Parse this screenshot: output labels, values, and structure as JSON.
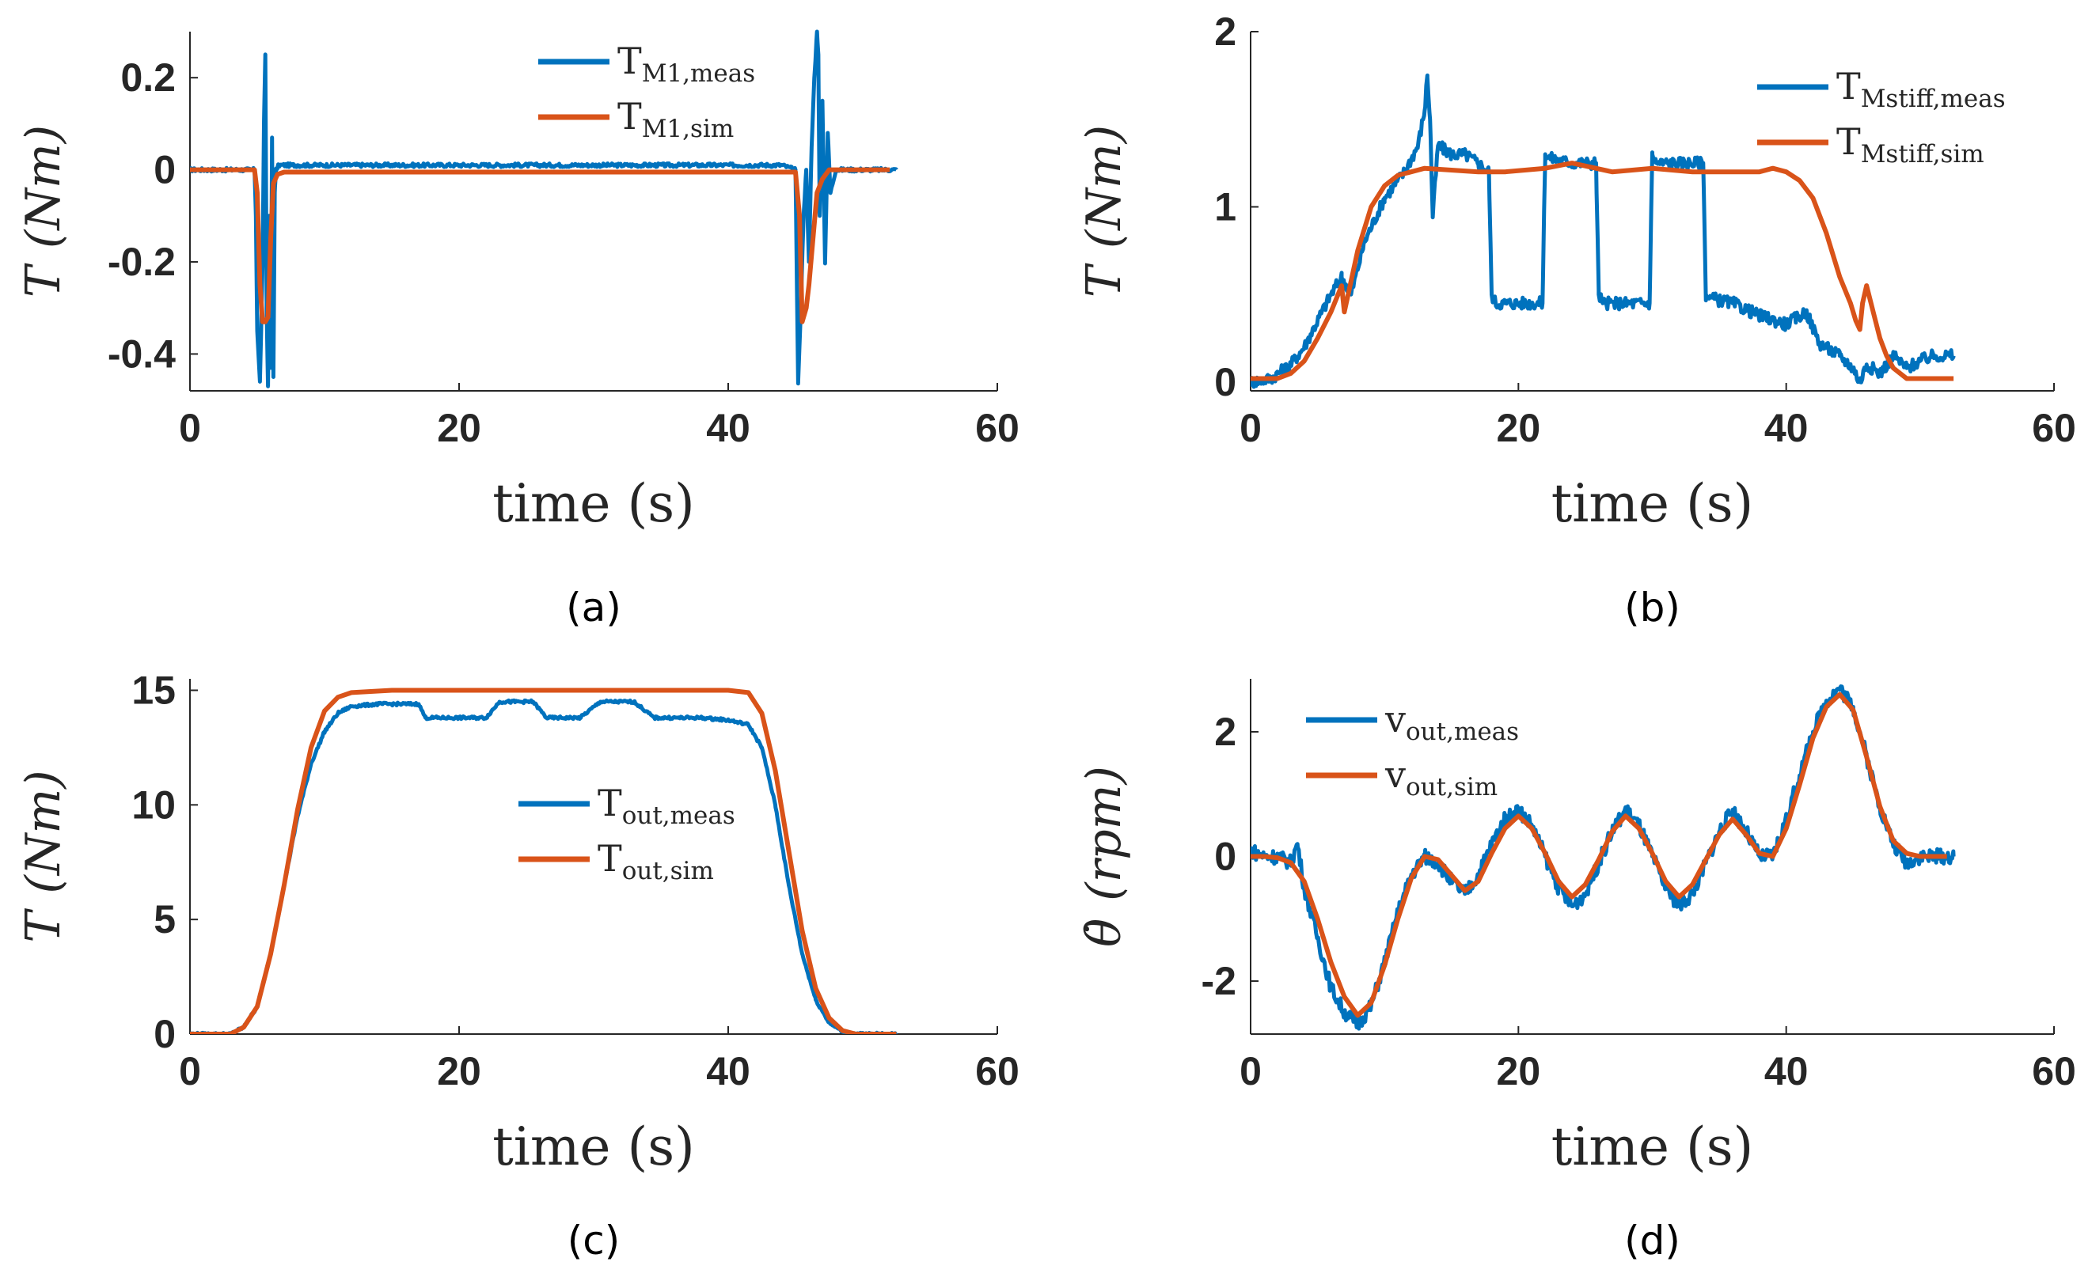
{
  "colors": {
    "meas": "#0072BD",
    "sim": "#D95319",
    "axis": "#262626"
  },
  "chart_data": [
    {
      "id": "a",
      "type": "line",
      "caption": "(a)",
      "xlabel": "time (s)",
      "ylabel_main": "T",
      "ylabel_unit": "(Nm)",
      "xlim": [
        0,
        60
      ],
      "ylim": [
        -0.48,
        0.3
      ],
      "xticks": [
        0,
        20,
        40,
        60
      ],
      "yticks": [
        0.2,
        0,
        -0.2,
        -0.4
      ],
      "ytick_labels": [
        "0.2",
        "0",
        "-0.2",
        "-0.4"
      ],
      "legend_position": "top-center",
      "series": [
        {
          "name": "T_M1,meas",
          "label_base": "T",
          "label_sub": "M1,meas",
          "color": "meas",
          "noise": 0.004,
          "x": [
            0,
            4.8,
            4.9,
            5.0,
            5.2,
            5.4,
            5.5,
            5.6,
            5.7,
            5.8,
            5.9,
            6.0,
            6.1,
            6.2,
            6.3,
            6.4,
            6.6,
            8,
            44,
            45.0,
            45.2,
            45.4,
            45.6,
            45.8,
            46.0,
            46.2,
            46.4,
            46.6,
            46.7,
            46.8,
            47.0,
            47.2,
            47.4,
            47.6,
            48,
            52.5
          ],
          "y": [
            0,
            0,
            -0.1,
            -0.35,
            -0.46,
            -0.2,
            0.1,
            0.25,
            -0.3,
            -0.47,
            -0.1,
            -0.43,
            0.07,
            -0.45,
            -0.05,
            0.0,
            0.01,
            0.01,
            0.01,
            0.0,
            -0.46,
            -0.3,
            -0.1,
            0.0,
            -0.2,
            0.05,
            0.2,
            0.3,
            0.25,
            -0.1,
            0.15,
            -0.2,
            0.08,
            -0.05,
            0.0,
            0.0
          ]
        },
        {
          "name": "T_M1,sim",
          "label_base": "T",
          "label_sub": "M1,sim",
          "color": "sim",
          "noise": 0,
          "x": [
            0,
            4.8,
            5.0,
            5.2,
            5.4,
            5.6,
            5.8,
            6.0,
            6.2,
            6.5,
            7.0,
            45.0,
            45.3,
            45.5,
            45.8,
            46.0,
            46.3,
            46.6,
            47.0,
            47.5,
            52
          ],
          "y": [
            0,
            0,
            -0.05,
            -0.25,
            -0.33,
            -0.33,
            -0.32,
            -0.15,
            -0.03,
            -0.01,
            -0.005,
            -0.005,
            -0.1,
            -0.33,
            -0.3,
            -0.25,
            -0.15,
            -0.05,
            -0.02,
            0.0,
            0.0
          ]
        }
      ]
    },
    {
      "id": "b",
      "type": "line",
      "caption": "(b)",
      "xlabel": "time (s)",
      "ylabel_main": "T",
      "ylabel_unit": "(Nm)",
      "xlim": [
        0,
        60
      ],
      "ylim": [
        -0.05,
        2.0
      ],
      "xticks": [
        0,
        20,
        40,
        60
      ],
      "yticks": [
        0,
        1,
        2
      ],
      "ytick_labels": [
        "0",
        "1",
        "2"
      ],
      "legend_position": "top-right",
      "series": [
        {
          "name": "T_Mstiff,meas",
          "label_base": "T",
          "label_sub": "Mstiff,meas",
          "color": "meas",
          "noise": 0.035,
          "x": [
            0,
            1.5,
            3,
            4,
            5,
            6,
            6.8,
            7.5,
            8.5,
            10,
            11.5,
            12.5,
            13.0,
            13.2,
            13.4,
            13.6,
            14,
            15,
            16,
            17,
            17.8,
            18.0,
            18.3,
            19,
            21,
            21.8,
            22.0,
            22.3,
            24,
            25.8,
            26.0,
            26.3,
            29.8,
            30.0,
            30.3,
            33.8,
            34.0,
            34.3,
            36,
            38,
            40,
            41.5,
            42.5,
            44,
            45,
            45.5,
            46,
            47,
            48,
            49,
            50,
            51,
            52.5
          ],
          "y": [
            0.0,
            0.02,
            0.1,
            0.2,
            0.35,
            0.5,
            0.6,
            0.5,
            0.8,
            1.05,
            1.2,
            1.35,
            1.55,
            1.75,
            1.5,
            0.95,
            1.35,
            1.3,
            1.3,
            1.25,
            1.2,
            0.5,
            0.45,
            0.45,
            0.45,
            0.45,
            1.3,
            1.28,
            1.25,
            1.25,
            0.5,
            0.45,
            0.45,
            1.3,
            1.25,
            1.25,
            0.5,
            0.48,
            0.45,
            0.38,
            0.33,
            0.4,
            0.22,
            0.15,
            0.08,
            0.0,
            0.1,
            0.05,
            0.15,
            0.08,
            0.12,
            0.15,
            0.15
          ]
        },
        {
          "name": "T_Mstiff,sim",
          "label_base": "T",
          "label_sub": "Mstiff,sim",
          "color": "sim",
          "noise": 0,
          "x": [
            0,
            2,
            3,
            4,
            5,
            6,
            6.8,
            7.0,
            8,
            9,
            10,
            11,
            13,
            17,
            19,
            22,
            24,
            27,
            30,
            33,
            36,
            38,
            39,
            40,
            41,
            42,
            43,
            44,
            44.8,
            45.2,
            45.5,
            45.7,
            46,
            46.5,
            47,
            47.5,
            48,
            48.5,
            49,
            50,
            52.5
          ],
          "y": [
            0.02,
            0.02,
            0.05,
            0.12,
            0.25,
            0.4,
            0.55,
            0.4,
            0.75,
            1.0,
            1.12,
            1.18,
            1.22,
            1.2,
            1.2,
            1.22,
            1.25,
            1.2,
            1.22,
            1.2,
            1.2,
            1.2,
            1.22,
            1.2,
            1.15,
            1.05,
            0.85,
            0.6,
            0.45,
            0.35,
            0.3,
            0.45,
            0.55,
            0.4,
            0.25,
            0.15,
            0.08,
            0.05,
            0.02,
            0.02,
            0.02
          ]
        }
      ]
    },
    {
      "id": "c",
      "type": "line",
      "caption": "(c)",
      "xlabel": "time (s)",
      "ylabel_main": "T",
      "ylabel_unit": "(Nm)",
      "xlim": [
        0,
        60
      ],
      "ylim": [
        0,
        15.5
      ],
      "xticks": [
        0,
        20,
        40,
        60
      ],
      "yticks": [
        0,
        5,
        10,
        15
      ],
      "ytick_labels": [
        "0",
        "5",
        "10",
        "15"
      ],
      "legend_position": "center-right",
      "series": [
        {
          "name": "T_out,meas",
          "label_base": "T",
          "label_sub": "out,meas",
          "color": "meas",
          "noise": 0.06,
          "x": [
            0,
            3,
            4,
            5,
            6,
            7,
            8,
            9,
            10,
            11,
            12,
            14,
            17,
            17.5,
            18.5,
            22,
            23,
            25.5,
            26.5,
            29,
            30.5,
            33,
            34.5,
            38,
            40,
            41.5,
            42.5,
            43.5,
            44.5,
            45.5,
            46.5,
            47.5,
            48.5,
            49.5,
            52.5
          ],
          "y": [
            0,
            0,
            0.3,
            1.2,
            3.5,
            6.5,
            9.5,
            11.8,
            13.2,
            14.0,
            14.3,
            14.4,
            14.4,
            13.8,
            13.8,
            13.8,
            14.5,
            14.5,
            13.8,
            13.8,
            14.5,
            14.5,
            13.8,
            13.8,
            13.7,
            13.5,
            12.5,
            10.0,
            6.5,
            3.5,
            1.5,
            0.5,
            0.1,
            0,
            0
          ]
        },
        {
          "name": "T_out,sim",
          "label_base": "T",
          "label_sub": "out,sim",
          "color": "sim",
          "noise": 0,
          "x": [
            0,
            3,
            4,
            5,
            6,
            7,
            8,
            9,
            10,
            11,
            12,
            15,
            20,
            30,
            40,
            41.5,
            42.5,
            43.5,
            44.5,
            45.5,
            46.5,
            47.5,
            48.5,
            49.5,
            52.5
          ],
          "y": [
            0,
            0,
            0.3,
            1.2,
            3.5,
            6.5,
            9.8,
            12.5,
            14.1,
            14.7,
            14.9,
            15.0,
            15.0,
            15.0,
            15.0,
            14.9,
            14.0,
            11.5,
            8.0,
            4.5,
            2.0,
            0.7,
            0.15,
            0,
            0
          ]
        }
      ]
    },
    {
      "id": "d",
      "type": "line",
      "caption": "(d)",
      "xlabel": "time (s)",
      "ylabel_main": "θ̇",
      "ylabel_unit": "(rpm)",
      "xlim": [
        0,
        60
      ],
      "ylim": [
        -2.85,
        2.85
      ],
      "xticks": [
        0,
        20,
        40,
        60
      ],
      "yticks": [
        2,
        0,
        -2
      ],
      "ytick_labels": [
        "2",
        "0",
        "-2"
      ],
      "legend_position": "top-left",
      "series": [
        {
          "name": "v_out,meas",
          "label_base": "v",
          "label_sub": "out,meas",
          "color": "meas",
          "noise": 0.12,
          "x": [
            0,
            1,
            2,
            3,
            3.5,
            4,
            5,
            6,
            7,
            8,
            9,
            10,
            11,
            12,
            13,
            14,
            15,
            16,
            17,
            18,
            19,
            20,
            21,
            22,
            23,
            24,
            25,
            26,
            27,
            28,
            29,
            30,
            31,
            32,
            33,
            34,
            35,
            36,
            37,
            38,
            39,
            40,
            41,
            42,
            43,
            44,
            45,
            46,
            47,
            48,
            49,
            50,
            51,
            52.5
          ],
          "y": [
            0.1,
            0.0,
            0.0,
            -0.1,
            0.2,
            -0.5,
            -1.3,
            -2.1,
            -2.5,
            -2.7,
            -2.4,
            -1.7,
            -0.9,
            -0.3,
            0.0,
            -0.1,
            -0.4,
            -0.6,
            -0.3,
            0.2,
            0.6,
            0.75,
            0.5,
            0.0,
            -0.5,
            -0.8,
            -0.6,
            -0.1,
            0.4,
            0.75,
            0.5,
            0.0,
            -0.5,
            -0.8,
            -0.6,
            -0.1,
            0.4,
            0.75,
            0.4,
            0.0,
            0.0,
            0.6,
            1.3,
            2.0,
            2.5,
            2.7,
            2.4,
            1.6,
            0.8,
            0.2,
            -0.1,
            0.0,
            0.0,
            0.0
          ]
        },
        {
          "name": "v_out,sim",
          "label_base": "v",
          "label_sub": "out,sim",
          "color": "sim",
          "noise": 0,
          "x": [
            0,
            1,
            2,
            3,
            4,
            5,
            6,
            7,
            8,
            9,
            10,
            11,
            12,
            13,
            14,
            15,
            16,
            17,
            18,
            19,
            20,
            21,
            22,
            23,
            24,
            25,
            26,
            27,
            28,
            29,
            30,
            31,
            32,
            33,
            34,
            35,
            36,
            37,
            38,
            39,
            40,
            41,
            42,
            43,
            44,
            45,
            46,
            47,
            48,
            49,
            50,
            51,
            52
          ],
          "y": [
            0.0,
            0.0,
            -0.02,
            -0.1,
            -0.4,
            -1.0,
            -1.7,
            -2.25,
            -2.55,
            -2.35,
            -1.75,
            -1.0,
            -0.35,
            0.0,
            -0.05,
            -0.3,
            -0.55,
            -0.4,
            0.05,
            0.45,
            0.65,
            0.45,
            0.05,
            -0.4,
            -0.65,
            -0.45,
            -0.05,
            0.4,
            0.65,
            0.45,
            0.05,
            -0.4,
            -0.65,
            -0.45,
            -0.05,
            0.35,
            0.6,
            0.35,
            0.05,
            0.0,
            0.45,
            1.15,
            1.9,
            2.4,
            2.6,
            2.35,
            1.6,
            0.8,
            0.25,
            0.05,
            0.0,
            0.0,
            0.0
          ]
        }
      ]
    }
  ]
}
